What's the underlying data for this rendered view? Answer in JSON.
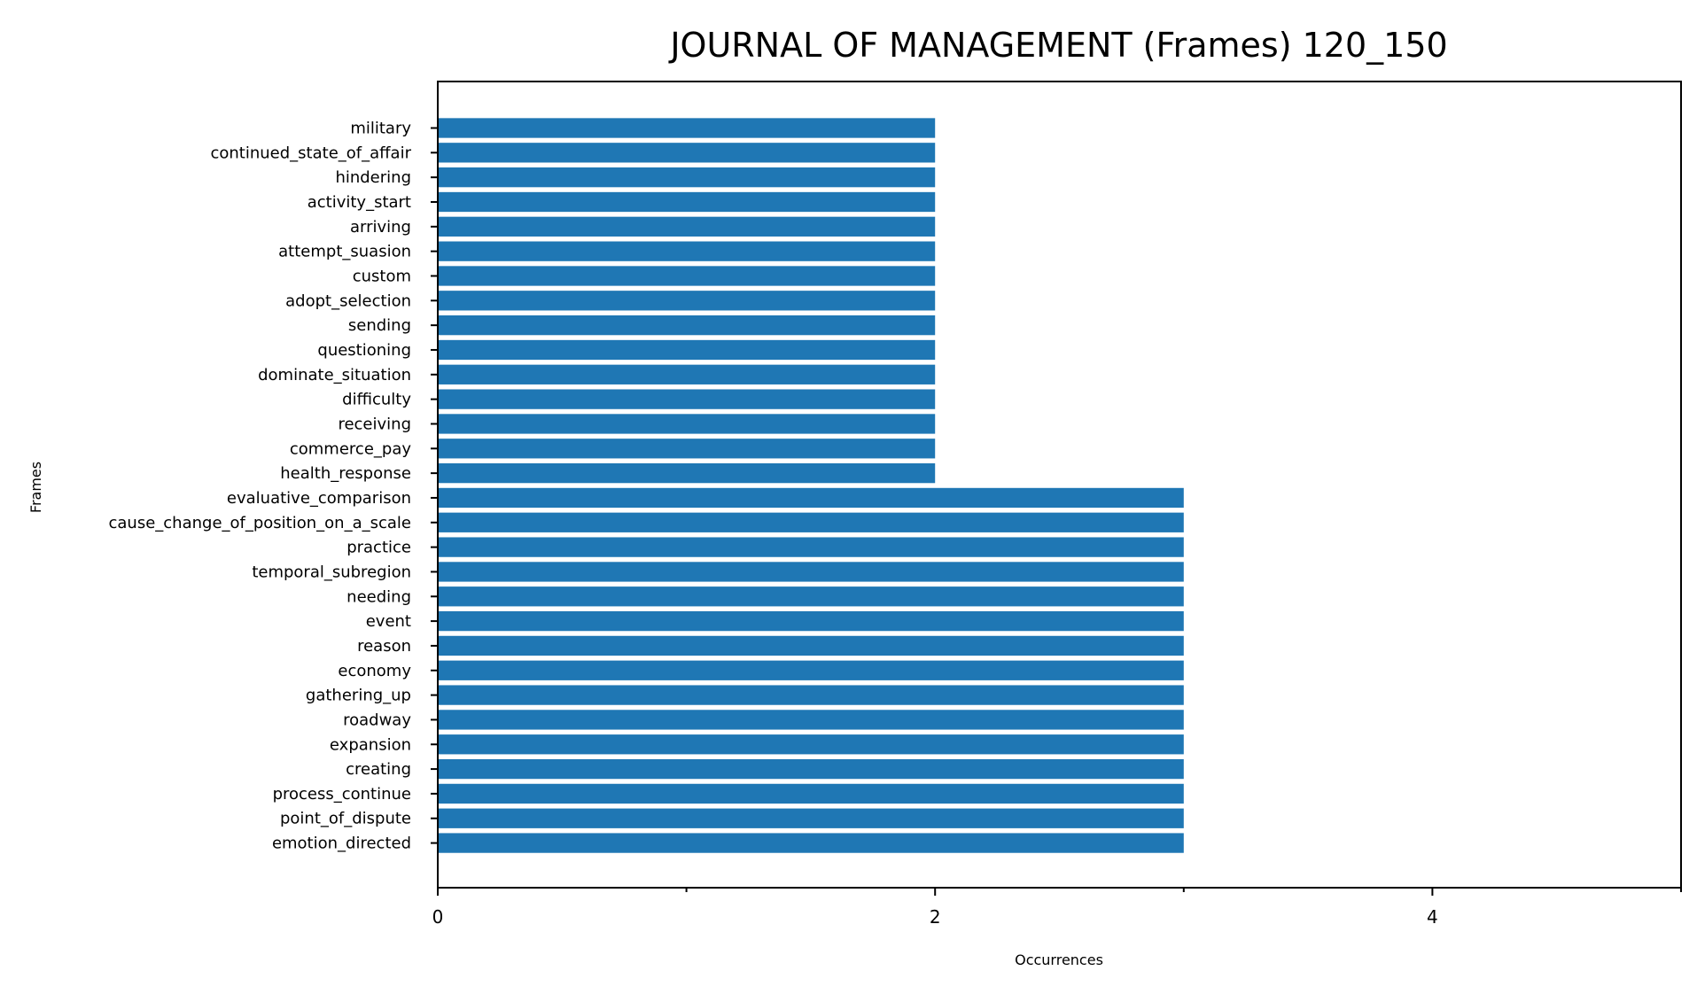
{
  "chart_data": {
    "type": "bar",
    "orientation": "horizontal",
    "title": "JOURNAL OF MANAGEMENT (Frames) 120_150",
    "xlabel": "Occurrences",
    "ylabel": "Frames",
    "xlim": [
      0,
      5
    ],
    "x_ticks": [
      0,
      2,
      4
    ],
    "x_minor_ticks": [
      1,
      3,
      5
    ],
    "grid": false,
    "bar_color": "#1f77b4",
    "categories": [
      "military",
      "continued_state_of_affair",
      "hindering",
      "activity_start",
      "arriving",
      "attempt_suasion",
      "custom",
      "adopt_selection",
      "sending",
      "questioning",
      "dominate_situation",
      "difficulty",
      "receiving",
      "commerce_pay",
      "health_response",
      "evaluative_comparison",
      "cause_change_of_position_on_a_scale",
      "practice",
      "temporal_subregion",
      "needing",
      "event",
      "reason",
      "economy",
      "gathering_up",
      "roadway",
      "expansion",
      "creating",
      "process_continue",
      "point_of_dispute",
      "emotion_directed"
    ],
    "values": [
      2,
      2,
      2,
      2,
      2,
      2,
      2,
      2,
      2,
      2,
      2,
      2,
      2,
      2,
      2,
      3,
      3,
      3,
      3,
      3,
      3,
      3,
      3,
      3,
      3,
      3,
      3,
      3,
      3,
      3
    ]
  }
}
